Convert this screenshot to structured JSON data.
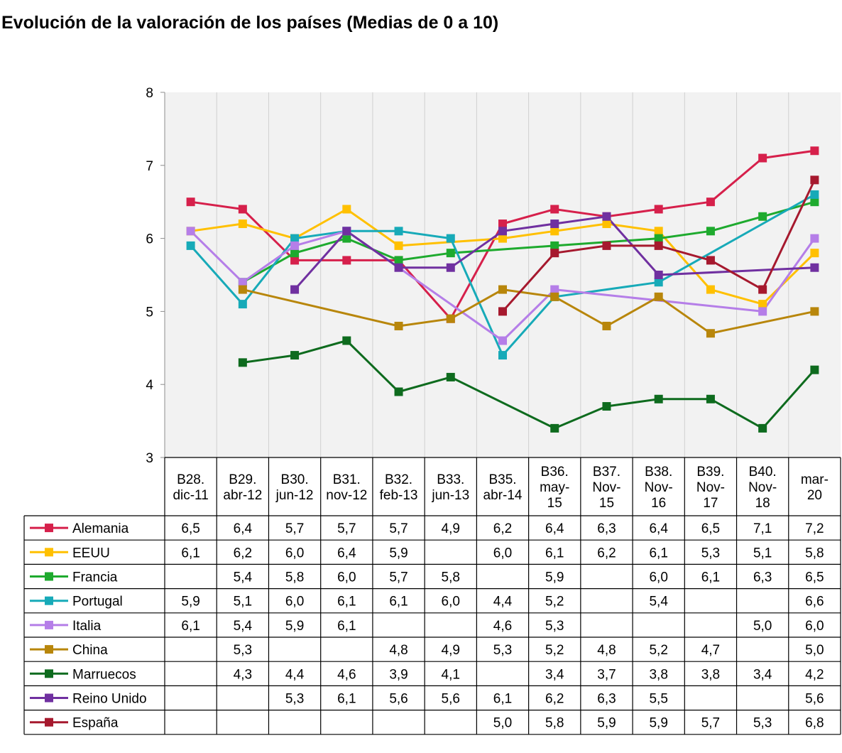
{
  "title": "Evolución de la valoración de los países (Medias de 0 a 10)",
  "chart_data": {
    "type": "line",
    "title": "Evolución de la valoración de los países (Medias de 0 a 10)",
    "ylim": [
      3,
      8
    ],
    "yticks": [
      "3",
      "4",
      "5",
      "6",
      "7",
      "8"
    ],
    "grid": "vertical",
    "legend": "data-table-left",
    "categories": [
      [
        "B28.",
        "dic-11"
      ],
      [
        "B29.",
        "abr-12"
      ],
      [
        "B30.",
        "jun-12"
      ],
      [
        "B31.",
        "nov-12"
      ],
      [
        "B32.",
        "feb-13"
      ],
      [
        "B33.",
        "jun-13"
      ],
      [
        "B35.",
        "abr-14"
      ],
      [
        "B36.",
        "may-",
        "15"
      ],
      [
        "B37.",
        "Nov-",
        "15"
      ],
      [
        "B38.",
        "Nov-",
        "16"
      ],
      [
        "B39.",
        "Nov-",
        "17"
      ],
      [
        "B40.",
        "Nov-",
        "18"
      ],
      [
        "mar-",
        "20"
      ]
    ],
    "series": [
      {
        "name": "Alemania",
        "color": "#d6204b",
        "values": [
          6.5,
          6.4,
          5.7,
          5.7,
          5.7,
          4.9,
          6.2,
          6.4,
          6.3,
          6.4,
          6.5,
          7.1,
          7.2
        ],
        "labels": [
          "6,5",
          "6,4",
          "5,7",
          "5,7",
          "5,7",
          "4,9",
          "6,2",
          "6,4",
          "6,3",
          "6,4",
          "6,5",
          "7,1",
          "7,2"
        ]
      },
      {
        "name": "EEUU",
        "color": "#ffc000",
        "values": [
          6.1,
          6.2,
          6.0,
          6.4,
          5.9,
          null,
          6.0,
          6.1,
          6.2,
          6.1,
          5.3,
          5.1,
          5.8
        ],
        "labels": [
          "6,1",
          "6,2",
          "6,0",
          "6,4",
          "5,9",
          "",
          "6,0",
          "6,1",
          "6,2",
          "6,1",
          "5,3",
          "5,1",
          "5,8"
        ]
      },
      {
        "name": "Francia",
        "color": "#1eaa2e",
        "values": [
          null,
          5.4,
          5.8,
          6.0,
          5.7,
          5.8,
          null,
          5.9,
          null,
          6.0,
          6.1,
          6.3,
          6.5
        ],
        "labels": [
          "",
          "5,4",
          "5,8",
          "6,0",
          "5,7",
          "5,8",
          "",
          "5,9",
          "",
          "6,0",
          "6,1",
          "6,3",
          "6,5"
        ]
      },
      {
        "name": "Portugal",
        "color": "#17aab8",
        "values": [
          5.9,
          5.1,
          6.0,
          6.1,
          6.1,
          6.0,
          4.4,
          5.2,
          null,
          5.4,
          null,
          null,
          6.6
        ],
        "labels": [
          "5,9",
          "5,1",
          "6,0",
          "6,1",
          "6,1",
          "6,0",
          "4,4",
          "5,2",
          "",
          "5,4",
          "",
          "",
          "6,6"
        ]
      },
      {
        "name": "Italia",
        "color": "#b57ee8",
        "values": [
          6.1,
          5.4,
          5.9,
          6.1,
          null,
          null,
          4.6,
          5.3,
          null,
          null,
          null,
          5.0,
          6.0
        ],
        "labels": [
          "6,1",
          "5,4",
          "5,9",
          "6,1",
          "",
          "",
          "4,6",
          "5,3",
          "",
          "",
          "",
          "5,0",
          "6,0"
        ]
      },
      {
        "name": "China",
        "color": "#b8860b",
        "values": [
          null,
          5.3,
          null,
          null,
          4.8,
          4.9,
          5.3,
          5.2,
          4.8,
          5.2,
          4.7,
          null,
          5.0
        ],
        "labels": [
          "",
          "5,3",
          "",
          "",
          "4,8",
          "4,9",
          "5,3",
          "5,2",
          "4,8",
          "5,2",
          "4,7",
          "",
          "5,0"
        ]
      },
      {
        "name": "Marruecos",
        "color": "#0e6b1e",
        "values": [
          null,
          4.3,
          4.4,
          4.6,
          3.9,
          4.1,
          null,
          3.4,
          3.7,
          3.8,
          3.8,
          3.4,
          4.2
        ],
        "labels": [
          "",
          "4,3",
          "4,4",
          "4,6",
          "3,9",
          "4,1",
          "",
          "3,4",
          "3,7",
          "3,8",
          "3,8",
          "3,4",
          "4,2"
        ]
      },
      {
        "name": "Reino Unido",
        "color": "#7030a0",
        "values": [
          null,
          null,
          5.3,
          6.1,
          5.6,
          5.6,
          6.1,
          6.2,
          6.3,
          5.5,
          null,
          null,
          5.6
        ],
        "labels": [
          "",
          "",
          "5,3",
          "6,1",
          "5,6",
          "5,6",
          "6,1",
          "6,2",
          "6,3",
          "5,5",
          "",
          "",
          "5,6"
        ]
      },
      {
        "name": "España",
        "color": "#a6192e",
        "values": [
          null,
          null,
          null,
          null,
          null,
          null,
          5.0,
          5.8,
          5.9,
          5.9,
          5.7,
          5.3,
          6.8
        ],
        "labels": [
          "",
          "",
          "",
          "",
          "",
          "",
          "5,0",
          "5,8",
          "5,9",
          "5,9",
          "5,7",
          "5,3",
          "6,8"
        ]
      }
    ]
  }
}
